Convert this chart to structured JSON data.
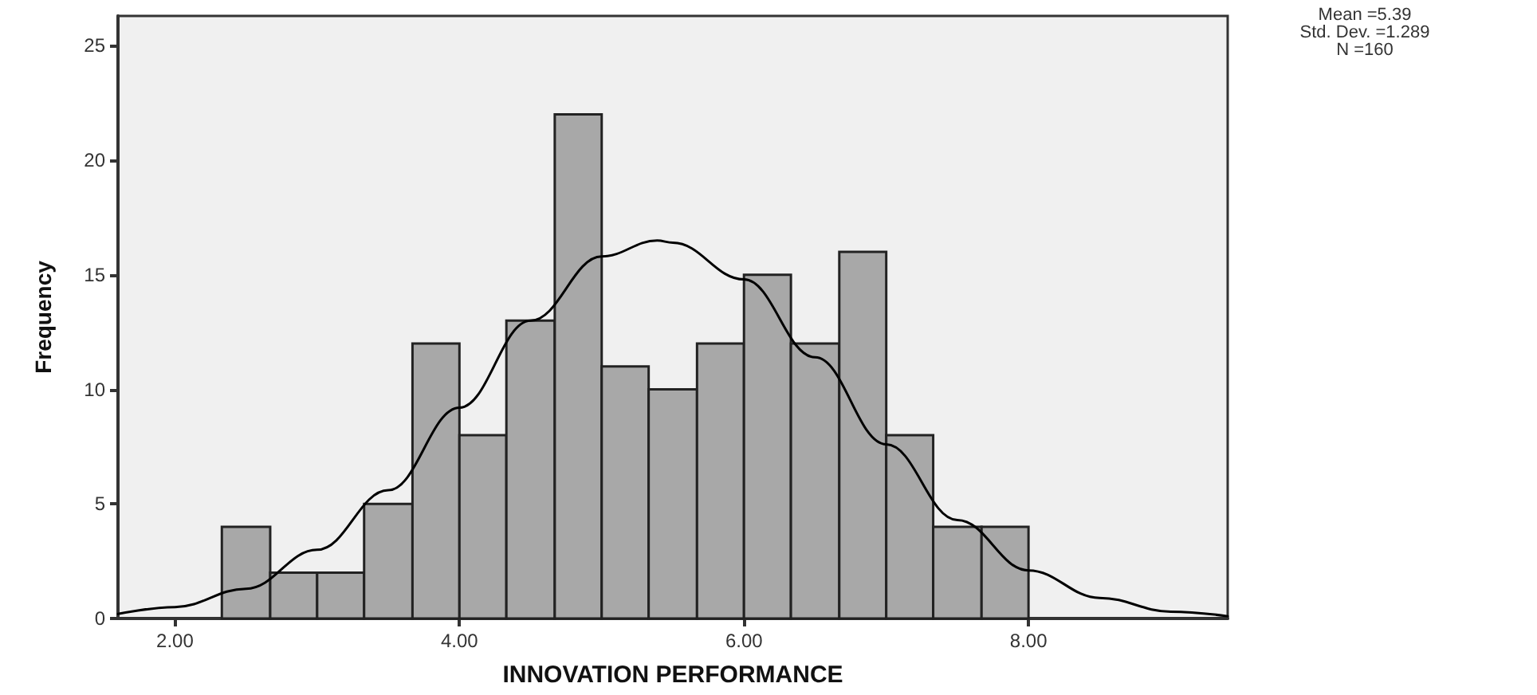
{
  "chart_data": {
    "type": "histogram",
    "xlabel": "INNOVATION PERFORMANCE",
    "ylabel": "Frequency",
    "bins": [
      2.33,
      2.67,
      3,
      3.33,
      3.67,
      4,
      4.33,
      4.67,
      5,
      5.33,
      5.67,
      6,
      6.33,
      6.67,
      7,
      7.33,
      7.67,
      8
    ],
    "values": [
      4,
      2,
      2,
      5,
      12,
      8,
      13,
      22,
      11,
      10,
      12,
      15,
      12,
      16,
      8,
      4,
      4
    ],
    "color": "#a8a8a8",
    "series": [
      {
        "type": "line",
        "color": "#000000",
        "x": [
          1.6,
          2,
          2.5,
          3,
          3.5,
          4,
          4.5,
          5,
          5.39,
          5.5,
          6,
          6.5,
          7,
          7.5,
          8,
          8.5,
          9,
          9.4
        ],
        "values": [
          0.2,
          0.5,
          1.3,
          3,
          5.6,
          9.2,
          13,
          15.8,
          16.5,
          16.4,
          14.8,
          11.4,
          7.6,
          4.3,
          2.1,
          0.9,
          0.3,
          0.1
        ]
      }
    ],
    "xlim": [
      1.6,
      9.4
    ],
    "xticks": [
      {
        "value": 2,
        "label": "2.00"
      },
      {
        "value": 4,
        "label": "4.00"
      },
      {
        "value": 6,
        "label": "6.00"
      },
      {
        "value": 8,
        "label": "8.00"
      }
    ],
    "ylim": [
      0,
      26.3
    ],
    "yticks": [
      0,
      5,
      10,
      15,
      20,
      25
    ],
    "grid": false,
    "marker": "none",
    "line_style": "solid",
    "annotations": [
      "Mean =5.39",
      "Std. Dev. =1.289",
      "N =160"
    ]
  }
}
